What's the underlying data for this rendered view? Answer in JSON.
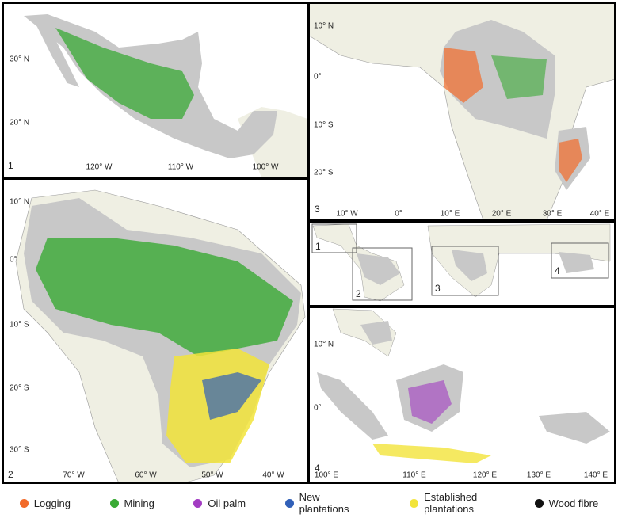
{
  "panels": [
    {
      "number": "1",
      "lat_labels": [
        "30° N",
        "20° N"
      ],
      "lon_labels": [
        "120° W",
        "110° W",
        "100° W"
      ]
    },
    {
      "number": "2",
      "lat_labels": [
        "10° N",
        "0°",
        "10° S",
        "20° S",
        "30° S"
      ],
      "lon_labels": [
        "70° W",
        "60° W",
        "50° W",
        "40° W"
      ]
    },
    {
      "number": "3",
      "lat_labels": [
        "10° N",
        "0°",
        "10° S",
        "20° S"
      ],
      "lon_labels": [
        "10° W",
        "0°",
        "10° E",
        "20° E",
        "30° E",
        "40° E"
      ]
    },
    {
      "number": "4",
      "lat_labels": [
        "10° N",
        "0°"
      ],
      "lon_labels": [
        "100° E",
        "110° E",
        "120° E",
        "130° E",
        "140° E"
      ]
    }
  ],
  "overview": {
    "box_labels": [
      "1",
      "2",
      "3",
      "4"
    ]
  },
  "legend": [
    {
      "label": "Logging",
      "color": "#f26b2a"
    },
    {
      "label": "Mining",
      "color": "#3aaa35"
    },
    {
      "label": "Oil palm",
      "color": "#a23cc2"
    },
    {
      "label": "New plantations",
      "color": "#3160b8"
    },
    {
      "label": "Established plantations",
      "color": "#f2e43a"
    },
    {
      "label": "Wood fibre",
      "color": "#111111"
    }
  ]
}
